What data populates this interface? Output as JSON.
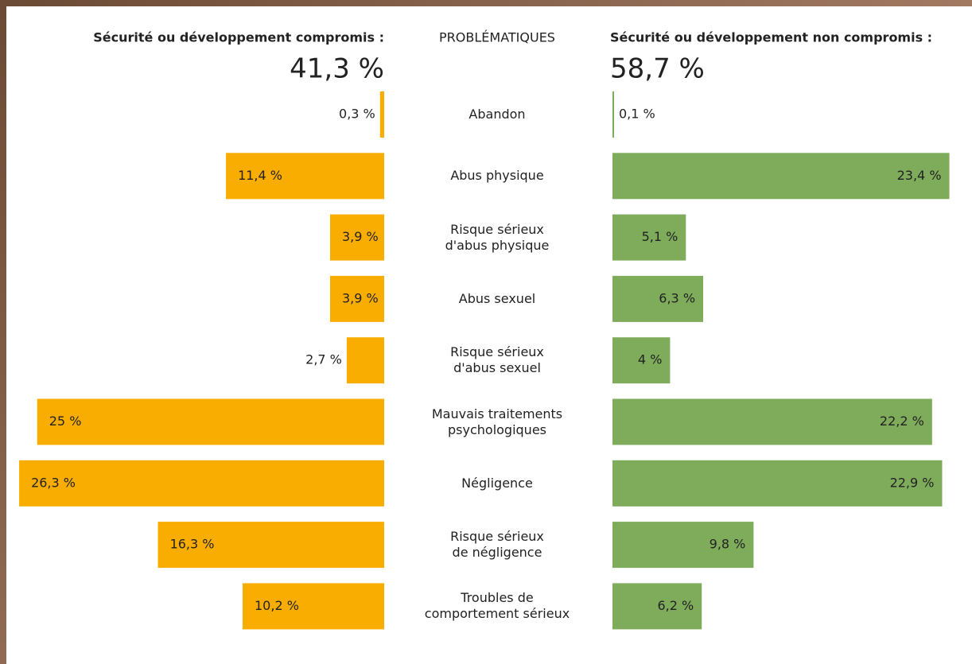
{
  "chart_data": {
    "type": "butterfly",
    "category_header": "PROBLÉMATIQUES",
    "categories": [
      "Abandon",
      "Abus physique",
      "Risque sérieux\nd'abus physique",
      "Abus sexuel",
      "Risque sérieux\nd'abus sexuel",
      "Mauvais traitements\npsychologiques",
      "Négligence",
      "Risque sérieux\nde négligence",
      "Troubles de\ncomportement sérieux"
    ],
    "series": [
      {
        "name": "Sécurité ou développement compromis :",
        "color": "#f9ad00",
        "side": "left",
        "total": 41.3,
        "total_label": "41,3 %",
        "values": [
          0.3,
          11.4,
          3.9,
          3.9,
          2.7,
          25,
          26.3,
          16.3,
          10.2
        ],
        "value_labels": [
          "0,3 %",
          "11,4 %",
          "3,9 %",
          "3,9 %",
          "2,7 %",
          "25 %",
          "26,3 %",
          "16,3 %",
          "10,2 %"
        ]
      },
      {
        "name": "Sécurité ou développement non compromis :",
        "color": "#7fac5b",
        "side": "right",
        "total": 58.7,
        "total_label": "58,7 %",
        "values": [
          0.1,
          23.4,
          5.1,
          6.3,
          4,
          22.2,
          22.9,
          9.8,
          6.2
        ],
        "value_labels": [
          "0,1 %",
          "23,4 %",
          "5,1 %",
          "6,3 %",
          "4 %",
          "22,2 %",
          "22,9 %",
          "9,8 %",
          "6,2 %"
        ]
      }
    ]
  }
}
